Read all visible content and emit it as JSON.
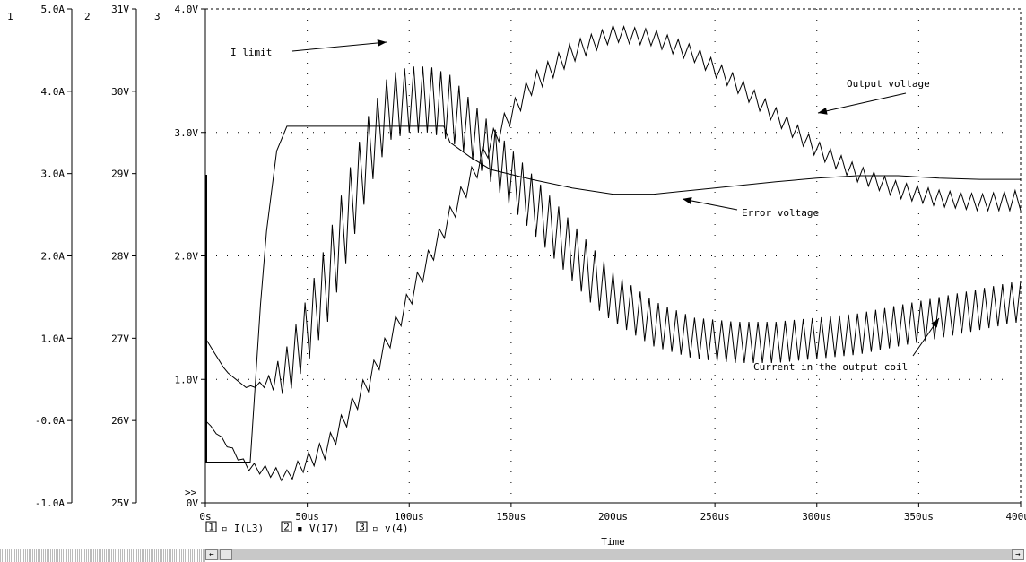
{
  "window": {
    "scroll_left_glyph": "←",
    "scroll_right_glyph": "→"
  },
  "chart_data": {
    "type": "line",
    "xlabel": "Time",
    "xlim": [
      0,
      400
    ],
    "x_ticks": [
      "0s",
      "50us",
      "100us",
      "150us",
      "200us",
      "250us",
      "300us",
      "350us",
      "400us"
    ],
    "axes": [
      {
        "id": "1",
        "unit": "A",
        "range": [
          -1.0,
          5.0
        ],
        "ticks": [
          "-1.0A",
          "-0.0A",
          "1.0A",
          "2.0A",
          "3.0A",
          "4.0A",
          "5.0A"
        ]
      },
      {
        "id": "2",
        "unit": "V",
        "range": [
          25,
          31
        ],
        "ticks": [
          "25V",
          "26V",
          "27V",
          "28V",
          "29V",
          "30V",
          "31V"
        ]
      },
      {
        "id": "3",
        "unit": "V",
        "range": [
          0,
          4.0
        ],
        "ticks": [
          "0V",
          "1.0V",
          "2.0V",
          "3.0V",
          "4.0V"
        ]
      }
    ],
    "legend": [
      {
        "axis": "1",
        "marker": "▫",
        "name": "I(L3)"
      },
      {
        "axis": "2",
        "marker": "▪",
        "name": "V(17)"
      },
      {
        "axis": "3",
        "marker": "▫",
        "name": "v(4)"
      }
    ],
    "overflow_marker": ">>",
    "series": [
      {
        "name": "I(L3)",
        "axis": "1",
        "envelope_x": [
          0,
          10,
          20,
          30,
          40,
          50,
          60,
          70,
          80,
          90,
          100,
          110,
          120,
          130,
          140,
          150,
          160,
          170,
          180,
          190,
          200,
          220,
          240,
          260,
          280,
          300,
          320,
          340,
          360,
          380,
          400
        ],
        "upper": [
          1.0,
          0.6,
          0.4,
          0.5,
          0.9,
          1.5,
          2.2,
          3.0,
          3.7,
          4.2,
          4.3,
          4.3,
          4.2,
          3.9,
          3.6,
          3.3,
          3.0,
          2.7,
          2.4,
          2.1,
          1.8,
          1.45,
          1.25,
          1.2,
          1.2,
          1.25,
          1.3,
          1.4,
          1.5,
          1.6,
          1.7
        ],
        "lower": [
          1.0,
          0.6,
          0.4,
          0.4,
          0.3,
          0.7,
          1.2,
          2.0,
          2.8,
          3.4,
          3.5,
          3.5,
          3.4,
          3.2,
          2.9,
          2.6,
          2.3,
          2.0,
          1.7,
          1.4,
          1.2,
          0.9,
          0.75,
          0.7,
          0.7,
          0.75,
          0.8,
          0.9,
          1.0,
          1.1,
          1.2
        ]
      },
      {
        "name": "V(17)",
        "axis": "2",
        "envelope_x": [
          0,
          20,
          40,
          60,
          80,
          100,
          120,
          140,
          160,
          180,
          200,
          220,
          240,
          260,
          280,
          300,
          320,
          340,
          360,
          380,
          400
        ],
        "upper": [
          26.0,
          25.5,
          25.4,
          25.8,
          26.6,
          27.6,
          28.6,
          29.5,
          30.2,
          30.6,
          30.8,
          30.75,
          30.55,
          30.2,
          29.8,
          29.4,
          29.1,
          28.9,
          28.8,
          28.75,
          28.8
        ],
        "lower": [
          26.0,
          25.4,
          25.25,
          25.55,
          26.35,
          27.35,
          28.35,
          29.25,
          29.95,
          30.35,
          30.6,
          30.55,
          30.35,
          30.0,
          29.6,
          29.2,
          28.9,
          28.7,
          28.6,
          28.55,
          28.55
        ]
      },
      {
        "name": "v(4)",
        "axis": "3",
        "x": [
          0,
          22,
          22,
          27,
          30,
          35,
          40,
          50,
          60,
          70,
          80,
          90,
          117,
          120,
          130,
          140,
          160,
          180,
          200,
          220,
          250,
          280,
          300,
          320,
          340,
          360,
          380,
          400
        ],
        "y": [
          0.33,
          0.33,
          0.33,
          1.6,
          2.2,
          2.85,
          3.05,
          3.05,
          3.05,
          3.05,
          3.05,
          3.05,
          3.05,
          2.92,
          2.8,
          2.7,
          2.62,
          2.55,
          2.5,
          2.5,
          2.55,
          2.6,
          2.63,
          2.65,
          2.65,
          2.63,
          2.62,
          2.62
        ]
      }
    ],
    "annotations": [
      {
        "text": "I limit"
      },
      {
        "text": "Output voltage"
      },
      {
        "text": "Error voltage"
      },
      {
        "text": "Current in the output coil"
      }
    ]
  }
}
